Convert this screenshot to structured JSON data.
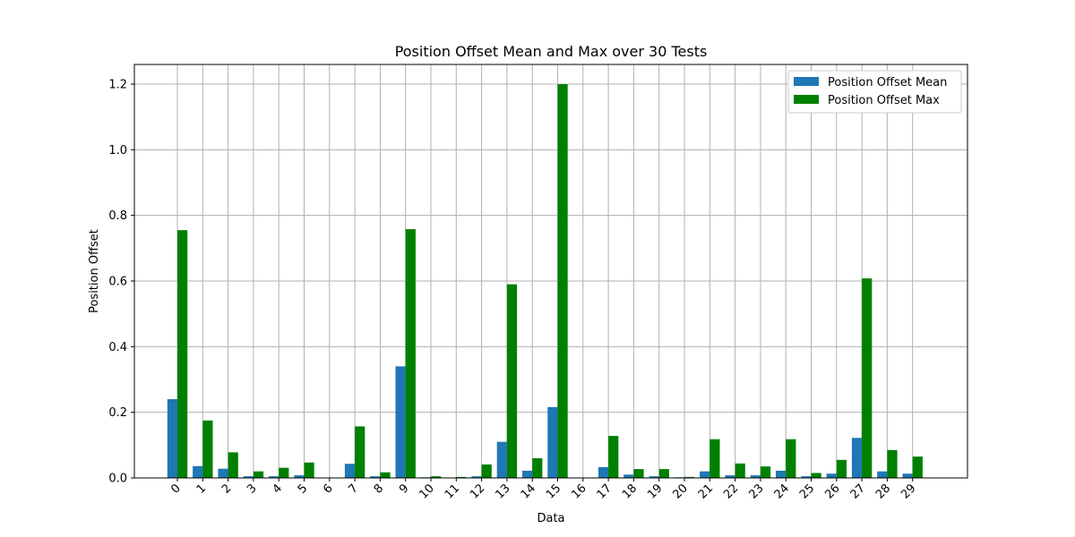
{
  "chart_data": {
    "type": "bar",
    "title": "Position Offset Mean and Max over 30 Tests",
    "xlabel": "Data",
    "ylabel": "Position Offset",
    "categories": [
      "0",
      "1",
      "2",
      "3",
      "4",
      "5",
      "6",
      "7",
      "8",
      "9",
      "10",
      "11",
      "12",
      "13",
      "14",
      "15",
      "16",
      "17",
      "18",
      "19",
      "20",
      "21",
      "22",
      "23",
      "24",
      "25",
      "26",
      "27",
      "28",
      "29"
    ],
    "series": [
      {
        "name": "Position Offset Mean",
        "color": "#1f77b4",
        "values": [
          0.24,
          0.036,
          0.028,
          0.005,
          0.005,
          0.008,
          0.0,
          0.043,
          0.005,
          0.34,
          0.002,
          0.001,
          0.005,
          0.11,
          0.022,
          0.216,
          0.0,
          0.033,
          0.01,
          0.005,
          0.002,
          0.02,
          0.008,
          0.008,
          0.022,
          0.005,
          0.013,
          0.122,
          0.02,
          0.013
        ]
      },
      {
        "name": "Position Offset Max",
        "color": "#008000",
        "values": [
          0.755,
          0.175,
          0.078,
          0.02,
          0.031,
          0.047,
          0.0,
          0.157,
          0.017,
          0.758,
          0.005,
          0.003,
          0.041,
          0.59,
          0.06,
          1.2,
          0.0,
          0.128,
          0.027,
          0.027,
          0.003,
          0.118,
          0.044,
          0.035,
          0.118,
          0.015,
          0.055,
          0.608,
          0.085,
          0.065
        ]
      }
    ],
    "yticks": [
      "0.0",
      "0.2",
      "0.4",
      "0.6",
      "0.8",
      "1.0",
      "1.2"
    ],
    "ylim": [
      0,
      1.26
    ],
    "grid": true,
    "legend_position": "top-right"
  }
}
